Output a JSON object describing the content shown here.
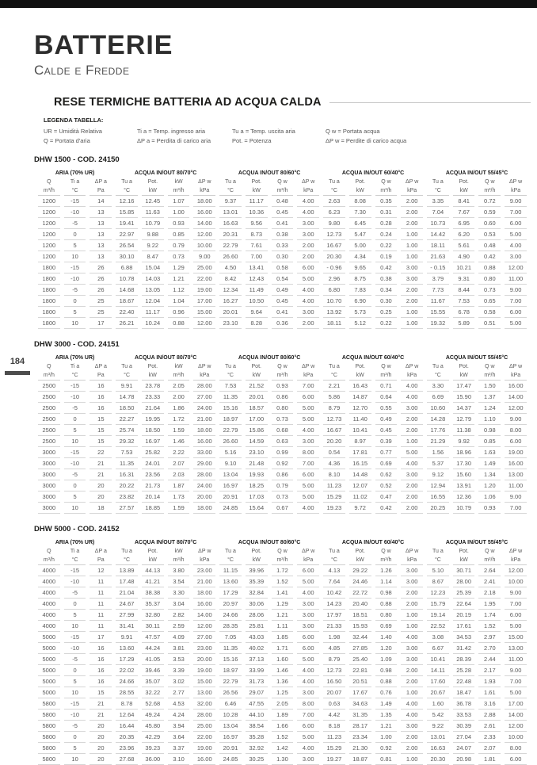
{
  "page": {
    "number": "184",
    "title": "BATTERIE",
    "subtitle": "Calde e Fredde",
    "section_heading": "RESE TERMICHE BATTERIA AD ACQUA CALDA",
    "accent_color": "#1d1d1b",
    "topbar_color": "#111111"
  },
  "legend": {
    "title": "LEGENDA TABELLA:",
    "items": [
      "UR = Umidità Relativa",
      "Ti a = Temp. ingresso aria",
      "Tu a = Temp. uscita aria",
      "Q w = Portata acqua",
      "Q = Portata d'aria",
      "ΔP a = Perdita di carico aria",
      "Pot. = Potenza",
      "ΔP w = Perdite di carico acqua"
    ]
  },
  "tables": [
    {
      "title": "DHW 1500 - COD. 24150",
      "groups": [
        "ARIA (70% UR)",
        "ACQUA IN/OUT 80/70°C",
        "ACQUA IN/OUT 80/60°C",
        "ACQUA IN/OUT 60/40°C",
        "ACQUA IN/OUT 55/45°C"
      ],
      "col_headers": [
        "Q",
        "Ti a",
        "ΔP a",
        "Tu a",
        "Pot.",
        "kW",
        "ΔP w",
        "Tu a",
        "Pot.",
        "Q w",
        "ΔP w",
        "Tu a",
        "Pot.",
        "Q w",
        "ΔP w",
        "Tu a",
        "Pot.",
        "Q w",
        "ΔP w"
      ],
      "units": [
        "m³/h",
        "°C",
        "Pa",
        "°C",
        "kW",
        "m³/h",
        "kPa",
        "°C",
        "kW",
        "m³/h",
        "kPa",
        "°C",
        "kW",
        "m³/h",
        "kPa",
        "°C",
        "kW",
        "m³/h",
        "kPa"
      ],
      "rows": [
        [
          "1200",
          "-15",
          "14",
          "12.16",
          "12.45",
          "1.07",
          "18.00",
          "9.37",
          "11.17",
          "0.48",
          "4.00",
          "2.63",
          "8.08",
          "0.35",
          "2.00",
          "3.35",
          "8.41",
          "0.72",
          "9.00"
        ],
        [
          "1200",
          "-10",
          "13",
          "15.85",
          "11.63",
          "1.00",
          "16.00",
          "13.01",
          "10.36",
          "0.45",
          "4.00",
          "6.23",
          "7.30",
          "0.31",
          "2.00",
          "7.04",
          "7.67",
          "0.59",
          "7.00"
        ],
        [
          "1200",
          "-5",
          "13",
          "19.41",
          "10.79",
          "0.93",
          "14.00",
          "16.63",
          "9.56",
          "0.41",
          "3.00",
          "9.80",
          "6.45",
          "0.28",
          "2.00",
          "10.73",
          "6.95",
          "0.60",
          "6.00"
        ],
        [
          "1200",
          "0",
          "13",
          "22.97",
          "9.88",
          "0.85",
          "12.00",
          "20.31",
          "8.73",
          "0.38",
          "3.00",
          "12.73",
          "5.47",
          "0.24",
          "1.00",
          "14.42",
          "6.20",
          "0.53",
          "5.00"
        ],
        [
          "1200",
          "5",
          "13",
          "26.54",
          "9.22",
          "0.79",
          "10.00",
          "22.79",
          "7.61",
          "0.33",
          "2.00",
          "16.67",
          "5.00",
          "0.22",
          "1.00",
          "18.11",
          "5.61",
          "0.48",
          "4.00"
        ],
        [
          "1200",
          "10",
          "13",
          "30.10",
          "8.47",
          "0.73",
          "9.00",
          "26.60",
          "7.00",
          "0.30",
          "2.00",
          "20.30",
          "4.34",
          "0.19",
          "1.00",
          "21.63",
          "4.90",
          "0.42",
          "3.00"
        ],
        [
          "1800",
          "-15",
          "26",
          "6.88",
          "15.04",
          "1.29",
          "25.00",
          "4.50",
          "13.41",
          "0.58",
          "6.00",
          "- 0.96",
          "9.65",
          "0.42",
          "3.00",
          "- 0.15",
          "10.21",
          "0.88",
          "12.00"
        ],
        [
          "1800",
          "-10",
          "26",
          "10.78",
          "14.03",
          "1.21",
          "22.00",
          "8.42",
          "12.43",
          "0.54",
          "5.00",
          "2.96",
          "8.75",
          "0.38",
          "3.00",
          "3.79",
          "9.31",
          "0.80",
          "11.00"
        ],
        [
          "1800",
          "-5",
          "26",
          "14.68",
          "13.05",
          "1.12",
          "19.00",
          "12.34",
          "11.49",
          "0.49",
          "4.00",
          "6.80",
          "7.83",
          "0.34",
          "2.00",
          "7.73",
          "8.44",
          "0.73",
          "9.00"
        ],
        [
          "1800",
          "0",
          "25",
          "18.67",
          "12.04",
          "1.04",
          "17.00",
          "16.27",
          "10.50",
          "0.45",
          "4.00",
          "10.70",
          "6.90",
          "0.30",
          "2.00",
          "11.67",
          "7.53",
          "0.65",
          "7.00"
        ],
        [
          "1800",
          "5",
          "25",
          "22.40",
          "11.17",
          "0.96",
          "15.00",
          "20.01",
          "9.64",
          "0.41",
          "3.00",
          "13.92",
          "5.73",
          "0.25",
          "1.00",
          "15.55",
          "6.78",
          "0.58",
          "6.00"
        ],
        [
          "1800",
          "10",
          "17",
          "26.21",
          "10.24",
          "0.88",
          "12.00",
          "23.10",
          "8.28",
          "0.36",
          "2.00",
          "18.11",
          "5.12",
          "0.22",
          "1.00",
          "19.32",
          "5.89",
          "0.51",
          "5.00"
        ]
      ]
    },
    {
      "title": "DHW 3000 - COD. 24151",
      "groups": [
        "ARIA (70% UR)",
        "ACQUA IN/OUT 80/70°C",
        "ACQUA IN/OUT 80/60°C",
        "ACQUA IN/OUT 60/40°C",
        "ACQUA IN/OUT 55/45°C"
      ],
      "col_headers": [
        "Q",
        "Ti a",
        "ΔP a",
        "Tu a",
        "Pot.",
        "kW",
        "ΔP w",
        "Tu a",
        "Pot.",
        "Q w",
        "ΔP w",
        "Tu a",
        "Pot.",
        "Q w",
        "ΔP w",
        "Tu a",
        "Pot.",
        "Q w",
        "ΔP w"
      ],
      "units": [
        "m³/h",
        "°C",
        "Pa",
        "°C",
        "kW",
        "m³/h",
        "kPa",
        "°C",
        "kW",
        "m³/h",
        "kPa",
        "°C",
        "kW",
        "m³/h",
        "kPa",
        "°C",
        "kW",
        "m³/h",
        "kPa"
      ],
      "rows": [
        [
          "2500",
          "-15",
          "16",
          "9.91",
          "23.78",
          "2.05",
          "28.00",
          "7.53",
          "21.52",
          "0.93",
          "7.00",
          "2.21",
          "16.43",
          "0.71",
          "4.00",
          "3.30",
          "17.47",
          "1.50",
          "16.00"
        ],
        [
          "2500",
          "-10",
          "16",
          "14.78",
          "23.33",
          "2.00",
          "27.00",
          "11.35",
          "20.01",
          "0.86",
          "6.00",
          "5.86",
          "14.87",
          "0.64",
          "4.00",
          "6.69",
          "15.90",
          "1.37",
          "14.00"
        ],
        [
          "2500",
          "-5",
          "16",
          "18.50",
          "21.64",
          "1.86",
          "24.00",
          "15.16",
          "18.57",
          "0.80",
          "5.00",
          "8.79",
          "12.70",
          "0.55",
          "3.00",
          "10.60",
          "14.37",
          "1.24",
          "12.00"
        ],
        [
          "2500",
          "0",
          "15",
          "22.27",
          "19.95",
          "1.72",
          "21.00",
          "18.97",
          "17.00",
          "0.73",
          "5.00",
          "12.73",
          "11.40",
          "0.49",
          "2.00",
          "14.28",
          "12.79",
          "1.10",
          "9.00"
        ],
        [
          "2500",
          "5",
          "15",
          "25.74",
          "18.50",
          "1.59",
          "18.00",
          "22.79",
          "15.86",
          "0.68",
          "4.00",
          "16.67",
          "10.41",
          "0.45",
          "2.00",
          "17.76",
          "11.38",
          "0.98",
          "8.00"
        ],
        [
          "2500",
          "10",
          "15",
          "29.32",
          "16.97",
          "1.46",
          "16.00",
          "26.60",
          "14.59",
          "0.63",
          "3.00",
          "20.20",
          "8.97",
          "0.39",
          "1.00",
          "21.29",
          "9.92",
          "0.85",
          "6.00"
        ],
        [
          "3000",
          "-15",
          "22",
          "7.53",
          "25.82",
          "2.22",
          "33.00",
          "5.16",
          "23.10",
          "0.99",
          "8.00",
          "0.54",
          "17.81",
          "0.77",
          "5.00",
          "1.56",
          "18.96",
          "1.63",
          "19.00"
        ],
        [
          "3000",
          "-10",
          "21",
          "11.35",
          "24.01",
          "2.07",
          "29.00",
          "9.10",
          "21.48",
          "0.92",
          "7.00",
          "4.36",
          "16.15",
          "0.69",
          "4.00",
          "5.37",
          "17.30",
          "1.49",
          "16.00"
        ],
        [
          "3000",
          "-5",
          "21",
          "16.31",
          "23.56",
          "2.03",
          "28.00",
          "13.04",
          "19.93",
          "0.86",
          "6.00",
          "8.10",
          "14.48",
          "0.62",
          "3.00",
          "9.12",
          "15.60",
          "1.34",
          "13.00"
        ],
        [
          "3000",
          "0",
          "20",
          "20.22",
          "21.73",
          "1.87",
          "24.00",
          "16.97",
          "18.25",
          "0.79",
          "5.00",
          "11.23",
          "12.07",
          "0.52",
          "2.00",
          "12.94",
          "13.91",
          "1.20",
          "11.00"
        ],
        [
          "3000",
          "5",
          "20",
          "23.82",
          "20.14",
          "1.73",
          "20.00",
          "20.91",
          "17.03",
          "0.73",
          "5.00",
          "15.29",
          "11.02",
          "0.47",
          "2.00",
          "16.55",
          "12.36",
          "1.06",
          "9.00"
        ],
        [
          "3000",
          "10",
          "18",
          "27.57",
          "18.85",
          "1.59",
          "18.00",
          "24.85",
          "15.64",
          "0.67",
          "4.00",
          "19.23",
          "9.72",
          "0.42",
          "2.00",
          "20.25",
          "10.79",
          "0.93",
          "7.00"
        ]
      ]
    },
    {
      "title": "DHW 5000 - COD. 24152",
      "groups": [
        "ARIA (70% UR)",
        "ACQUA IN/OUT 80/70°C",
        "ACQUA IN/OUT 80/60°C",
        "ACQUA IN/OUT 60/40°C",
        "ACQUA IN/OUT 55/45°C"
      ],
      "col_headers": [
        "Q",
        "Ti a",
        "ΔP a",
        "Tu a",
        "Pot.",
        "kW",
        "ΔP w",
        "Tu a",
        "Pot.",
        "Q w",
        "ΔP w",
        "Tu a",
        "Pot.",
        "Q w",
        "ΔP w",
        "Tu a",
        "Pot.",
        "Q w",
        "ΔP w"
      ],
      "units": [
        "m³/h",
        "°C",
        "Pa",
        "°C",
        "kW",
        "m³/h",
        "kPa",
        "°C",
        "kW",
        "m³/h",
        "kPa",
        "°C",
        "kW",
        "m³/h",
        "kPa",
        "°C",
        "kW",
        "m³/h",
        "kPa"
      ],
      "rows": [
        [
          "4000",
          "-15",
          "12",
          "13.89",
          "44.13",
          "3.80",
          "23.00",
          "11.15",
          "39.96",
          "1.72",
          "6.00",
          "4.13",
          "29.22",
          "1.26",
          "3.00",
          "5.10",
          "30.71",
          "2.64",
          "12.00"
        ],
        [
          "4000",
          "-10",
          "11",
          "17.48",
          "41.21",
          "3.54",
          "21.00",
          "13.60",
          "35.39",
          "1.52",
          "5.00",
          "7.64",
          "24.46",
          "1.14",
          "3.00",
          "8.67",
          "28.00",
          "2.41",
          "10.00"
        ],
        [
          "4000",
          "-5",
          "11",
          "21.04",
          "38.38",
          "3.30",
          "18.00",
          "17.29",
          "32.84",
          "1.41",
          "4.00",
          "10.42",
          "22.72",
          "0.98",
          "2.00",
          "12.23",
          "25.39",
          "2.18",
          "9.00"
        ],
        [
          "4000",
          "0",
          "11",
          "24.67",
          "35.37",
          "3.04",
          "16.00",
          "20.97",
          "30.06",
          "1.29",
          "3.00",
          "14.23",
          "20.40",
          "0.88",
          "2.00",
          "15.79",
          "22.64",
          "1.95",
          "7.00"
        ],
        [
          "4000",
          "5",
          "11",
          "27.99",
          "32.80",
          "2.82",
          "14.00",
          "24.66",
          "28.06",
          "1.21",
          "3.00",
          "17.97",
          "18.51",
          "0.80",
          "1.00",
          "19.14",
          "20.19",
          "1.74",
          "6.00"
        ],
        [
          "4000",
          "10",
          "11",
          "31.41",
          "30.11",
          "2.59",
          "12.00",
          "28.35",
          "25.81",
          "1.11",
          "3.00",
          "21.33",
          "15.93",
          "0.69",
          "1.00",
          "22.52",
          "17.61",
          "1.52",
          "5.00"
        ],
        [
          "5000",
          "-15",
          "17",
          "9.91",
          "47.57",
          "4.09",
          "27.00",
          "7.05",
          "43.03",
          "1.85",
          "6.00",
          "1.98",
          "32.44",
          "1.40",
          "4.00",
          "3.08",
          "34.53",
          "2.97",
          "15.00"
        ],
        [
          "5000",
          "-10",
          "16",
          "13.60",
          "44.24",
          "3.81",
          "23.00",
          "11.35",
          "40.02",
          "1.71",
          "6.00",
          "4.85",
          "27.85",
          "1.20",
          "3.00",
          "6.67",
          "31.42",
          "2.70",
          "13.00"
        ],
        [
          "5000",
          "-5",
          "16",
          "17.29",
          "41.05",
          "3.53",
          "20.00",
          "15.16",
          "37.13",
          "1.60",
          "5.00",
          "8.79",
          "25.40",
          "1.09",
          "3.00",
          "10.41",
          "28.39",
          "2.44",
          "11.00"
        ],
        [
          "5000",
          "0",
          "16",
          "22.02",
          "39.46",
          "3.39",
          "19.00",
          "18.97",
          "33.99",
          "1.46",
          "4.00",
          "12.73",
          "22.81",
          "0.98",
          "2.00",
          "14.11",
          "25.28",
          "2.17",
          "9.00"
        ],
        [
          "5000",
          "5",
          "16",
          "24.66",
          "35.07",
          "3.02",
          "15.00",
          "22.79",
          "31.73",
          "1.36",
          "4.00",
          "16.50",
          "20.51",
          "0.88",
          "2.00",
          "17.60",
          "22.48",
          "1.93",
          "7.00"
        ],
        [
          "5000",
          "10",
          "15",
          "28.55",
          "32.22",
          "2.77",
          "13.00",
          "26.56",
          "29.07",
          "1.25",
          "3.00",
          "20.07",
          "17.67",
          "0.76",
          "1.00",
          "20.67",
          "18.47",
          "1.61",
          "5.00"
        ],
        [
          "5800",
          "-15",
          "21",
          "8.78",
          "52.68",
          "4.53",
          "32.00",
          "6.46",
          "47.55",
          "2.05",
          "8.00",
          "0.63",
          "34.63",
          "1.49",
          "4.00",
          "1.60",
          "36.78",
          "3.16",
          "17.00"
        ],
        [
          "5800",
          "-10",
          "21",
          "12.64",
          "49.24",
          "4.24",
          "28.00",
          "10.28",
          "44.10",
          "1.89",
          "7.00",
          "4.42",
          "31.35",
          "1.35",
          "4.00",
          "5.42",
          "33.53",
          "2.88",
          "14.00"
        ],
        [
          "5800",
          "-5",
          "20",
          "16.44",
          "45.80",
          "3.94",
          "25.00",
          "13.04",
          "38.54",
          "1.66",
          "6.00",
          "8.18",
          "28.17",
          "1.21",
          "3.00",
          "9.22",
          "30.39",
          "2.61",
          "12.00"
        ],
        [
          "5800",
          "0",
          "20",
          "20.35",
          "42.29",
          "3.64",
          "22.00",
          "16.97",
          "35.28",
          "1.52",
          "5.00",
          "11.23",
          "23.34",
          "1.00",
          "2.00",
          "13.01",
          "27.04",
          "2.33",
          "10.00"
        ],
        [
          "5800",
          "5",
          "20",
          "23.96",
          "39.23",
          "3.37",
          "19.00",
          "20.91",
          "32.92",
          "1.42",
          "4.00",
          "15.29",
          "21.30",
          "0.92",
          "2.00",
          "16.63",
          "24.07",
          "2.07",
          "8.00"
        ],
        [
          "5800",
          "10",
          "20",
          "27.68",
          "36.00",
          "3.10",
          "16.00",
          "24.85",
          "30.25",
          "1.30",
          "3.00",
          "19.27",
          "18.87",
          "0.81",
          "1.00",
          "20.30",
          "20.98",
          "1.81",
          "6.00"
        ]
      ]
    }
  ]
}
